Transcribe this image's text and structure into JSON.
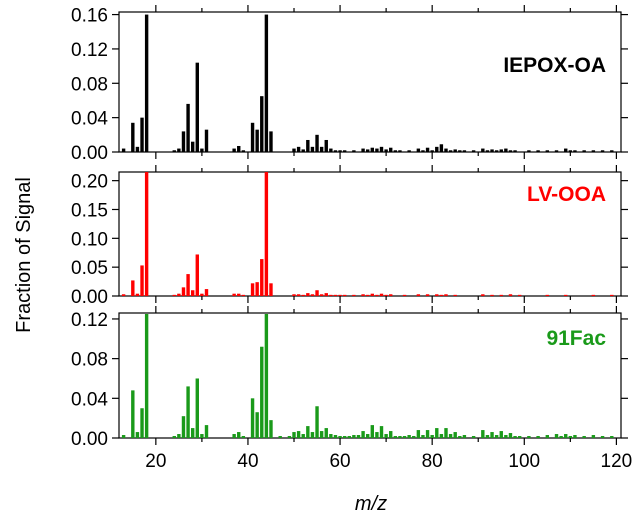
{
  "chart_data": {
    "type": "bar",
    "ylabel": "Fraction of Signal",
    "xlabel": "m/z",
    "xlim": [
      12,
      121
    ],
    "x_ticks": [
      20,
      40,
      60,
      80,
      100,
      120
    ],
    "x_tick_labels": [
      "20",
      "40",
      "60",
      "80",
      "100",
      "120"
    ],
    "grid": false,
    "panels": [
      {
        "name": "IEPOX-OA",
        "color": "#000000",
        "ylim": [
          0,
          0.163
        ],
        "y_ticks": [
          0,
          0.04,
          0.08,
          0.12,
          0.16
        ],
        "y_tick_labels": [
          "0.00",
          "0.04",
          "0.08",
          "0.12",
          "0.16"
        ],
        "points": [
          [
            13,
            0.004
          ],
          [
            15,
            0.034
          ],
          [
            16,
            0.006
          ],
          [
            17,
            0.04
          ],
          [
            18,
            0.16
          ],
          [
            24,
            0.002
          ],
          [
            25,
            0.004
          ],
          [
            26,
            0.024
          ],
          [
            27,
            0.056
          ],
          [
            28,
            0.012
          ],
          [
            29,
            0.104
          ],
          [
            30,
            0.004
          ],
          [
            31,
            0.026
          ],
          [
            37,
            0.004
          ],
          [
            38,
            0.007
          ],
          [
            39,
            0.002
          ],
          [
            41,
            0.034
          ],
          [
            42,
            0.026
          ],
          [
            43,
            0.065
          ],
          [
            44,
            0.16
          ],
          [
            45,
            0.024
          ],
          [
            50,
            0.004
          ],
          [
            51,
            0.006
          ],
          [
            52,
            0.003
          ],
          [
            53,
            0.014
          ],
          [
            54,
            0.006
          ],
          [
            55,
            0.02
          ],
          [
            56,
            0.006
          ],
          [
            57,
            0.014
          ],
          [
            58,
            0.004
          ],
          [
            59,
            0.002
          ],
          [
            60,
            0.002
          ],
          [
            61,
            0.002
          ],
          [
            63,
            0.002
          ],
          [
            65,
            0.004
          ],
          [
            66,
            0.003
          ],
          [
            67,
            0.005
          ],
          [
            68,
            0.004
          ],
          [
            69,
            0.006
          ],
          [
            70,
            0.003
          ],
          [
            71,
            0.005
          ],
          [
            72,
            0.002
          ],
          [
            73,
            0.002
          ],
          [
            75,
            0.002
          ],
          [
            77,
            0.004
          ],
          [
            78,
            0.002
          ],
          [
            79,
            0.005
          ],
          [
            80,
            0.002
          ],
          [
            81,
            0.006
          ],
          [
            82,
            0.009
          ],
          [
            83,
            0.004
          ],
          [
            84,
            0.002
          ],
          [
            85,
            0.003
          ],
          [
            86,
            0.002
          ],
          [
            87,
            0.002
          ],
          [
            89,
            0.002
          ],
          [
            91,
            0.004
          ],
          [
            92,
            0.002
          ],
          [
            93,
            0.003
          ],
          [
            94,
            0.002
          ],
          [
            95,
            0.003
          ],
          [
            96,
            0.004
          ],
          [
            97,
            0.002
          ],
          [
            98,
            0.002
          ],
          [
            101,
            0.002
          ],
          [
            103,
            0.002
          ],
          [
            105,
            0.002
          ],
          [
            107,
            0.002
          ],
          [
            109,
            0.004
          ],
          [
            110,
            0.002
          ],
          [
            111,
            0.002
          ],
          [
            113,
            0.002
          ],
          [
            115,
            0.002
          ],
          [
            117,
            0.002
          ],
          [
            119,
            0.002
          ]
        ]
      },
      {
        "name": "LV-OOA",
        "color": "#ff0000",
        "ylim": [
          0,
          0.215
        ],
        "y_ticks": [
          0,
          0.05,
          0.1,
          0.15,
          0.2
        ],
        "y_tick_labels": [
          "0.00",
          "0.05",
          "0.10",
          "0.15",
          "0.20"
        ],
        "points": [
          [
            13,
            0.003
          ],
          [
            15,
            0.027
          ],
          [
            16,
            0.004
          ],
          [
            17,
            0.053
          ],
          [
            18,
            0.215
          ],
          [
            24,
            0.002
          ],
          [
            25,
            0.004
          ],
          [
            26,
            0.015
          ],
          [
            27,
            0.038
          ],
          [
            28,
            0.01
          ],
          [
            29,
            0.072
          ],
          [
            30,
            0.004
          ],
          [
            31,
            0.012
          ],
          [
            37,
            0.004
          ],
          [
            38,
            0.004
          ],
          [
            39,
            0.002
          ],
          [
            41,
            0.022
          ],
          [
            42,
            0.024
          ],
          [
            43,
            0.064
          ],
          [
            44,
            0.215
          ],
          [
            45,
            0.022
          ],
          [
            50,
            0.003
          ],
          [
            51,
            0.003
          ],
          [
            52,
            0.002
          ],
          [
            53,
            0.005
          ],
          [
            54,
            0.003
          ],
          [
            55,
            0.01
          ],
          [
            56,
            0.003
          ],
          [
            57,
            0.005
          ],
          [
            58,
            0.002
          ],
          [
            59,
            0.002
          ],
          [
            60,
            0.002
          ],
          [
            61,
            0.002
          ],
          [
            63,
            0.002
          ],
          [
            65,
            0.003
          ],
          [
            66,
            0.002
          ],
          [
            67,
            0.004
          ],
          [
            68,
            0.002
          ],
          [
            69,
            0.004
          ],
          [
            70,
            0.002
          ],
          [
            71,
            0.003
          ],
          [
            74,
            0.002
          ],
          [
            77,
            0.003
          ],
          [
            79,
            0.003
          ],
          [
            81,
            0.003
          ],
          [
            82,
            0.002
          ],
          [
            83,
            0.003
          ],
          [
            85,
            0.002
          ],
          [
            91,
            0.003
          ],
          [
            93,
            0.002
          ],
          [
            95,
            0.002
          ],
          [
            97,
            0.003
          ],
          [
            99,
            0.002
          ],
          [
            105,
            0.002
          ],
          [
            109,
            0.002
          ],
          [
            115,
            0.002
          ],
          [
            119,
            0.002
          ]
        ]
      },
      {
        "name": "91Fac",
        "color": "#1a9a1a",
        "ylim": [
          0,
          0.126
        ],
        "y_ticks": [
          0,
          0.04,
          0.08,
          0.12
        ],
        "y_tick_labels": [
          "0.00",
          "0.04",
          "0.08",
          "0.12"
        ],
        "points": [
          [
            13,
            0.003
          ],
          [
            15,
            0.048
          ],
          [
            16,
            0.006
          ],
          [
            17,
            0.03
          ],
          [
            18,
            0.125
          ],
          [
            24,
            0.002
          ],
          [
            25,
            0.004
          ],
          [
            26,
            0.022
          ],
          [
            27,
            0.052
          ],
          [
            28,
            0.01
          ],
          [
            29,
            0.06
          ],
          [
            30,
            0.004
          ],
          [
            31,
            0.013
          ],
          [
            37,
            0.004
          ],
          [
            38,
            0.006
          ],
          [
            39,
            0.002
          ],
          [
            41,
            0.04
          ],
          [
            42,
            0.026
          ],
          [
            43,
            0.092
          ],
          [
            44,
            0.125
          ],
          [
            45,
            0.018
          ],
          [
            47,
            0.002
          ],
          [
            49,
            0.002
          ],
          [
            50,
            0.006
          ],
          [
            51,
            0.007
          ],
          [
            52,
            0.004
          ],
          [
            53,
            0.012
          ],
          [
            54,
            0.006
          ],
          [
            55,
            0.032
          ],
          [
            56,
            0.007
          ],
          [
            57,
            0.01
          ],
          [
            58,
            0.004
          ],
          [
            59,
            0.003
          ],
          [
            60,
            0.002
          ],
          [
            61,
            0.002
          ],
          [
            62,
            0.002
          ],
          [
            63,
            0.003
          ],
          [
            64,
            0.003
          ],
          [
            65,
            0.007
          ],
          [
            66,
            0.004
          ],
          [
            67,
            0.013
          ],
          [
            68,
            0.006
          ],
          [
            69,
            0.012
          ],
          [
            70,
            0.004
          ],
          [
            71,
            0.007
          ],
          [
            72,
            0.002
          ],
          [
            73,
            0.002
          ],
          [
            74,
            0.002
          ],
          [
            75,
            0.003
          ],
          [
            76,
            0.002
          ],
          [
            77,
            0.008
          ],
          [
            78,
            0.003
          ],
          [
            79,
            0.008
          ],
          [
            80,
            0.003
          ],
          [
            81,
            0.01
          ],
          [
            82,
            0.004
          ],
          [
            83,
            0.01
          ],
          [
            84,
            0.004
          ],
          [
            85,
            0.006
          ],
          [
            86,
            0.002
          ],
          [
            87,
            0.003
          ],
          [
            89,
            0.002
          ],
          [
            91,
            0.008
          ],
          [
            92,
            0.003
          ],
          [
            93,
            0.006
          ],
          [
            94,
            0.003
          ],
          [
            95,
            0.007
          ],
          [
            96,
            0.003
          ],
          [
            97,
            0.005
          ],
          [
            98,
            0.002
          ],
          [
            99,
            0.002
          ],
          [
            101,
            0.002
          ],
          [
            103,
            0.002
          ],
          [
            105,
            0.003
          ],
          [
            107,
            0.004
          ],
          [
            108,
            0.002
          ],
          [
            109,
            0.004
          ],
          [
            110,
            0.002
          ],
          [
            111,
            0.003
          ],
          [
            113,
            0.002
          ],
          [
            115,
            0.003
          ],
          [
            117,
            0.002
          ],
          [
            119,
            0.002
          ]
        ]
      }
    ]
  }
}
